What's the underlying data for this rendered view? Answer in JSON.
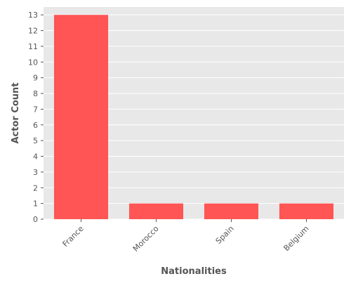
{
  "chart_data": {
    "type": "bar",
    "title": "",
    "xlabel": "Nationalities",
    "ylabel": "Actor Count",
    "categories": [
      "France",
      "Morocco",
      "Spain",
      "Belgium"
    ],
    "values": [
      13,
      1,
      1,
      1
    ],
    "ylim": [
      0,
      13.5
    ],
    "yticks": [
      0,
      1,
      2,
      3,
      4,
      5,
      6,
      7,
      8,
      9,
      10,
      11,
      12,
      13
    ],
    "grid": true,
    "legend": "none",
    "colors": {
      "bar": "#FF5555",
      "plot_background": "#E8E8E8",
      "grid": "#FFFFFF",
      "text": "#555555"
    }
  }
}
